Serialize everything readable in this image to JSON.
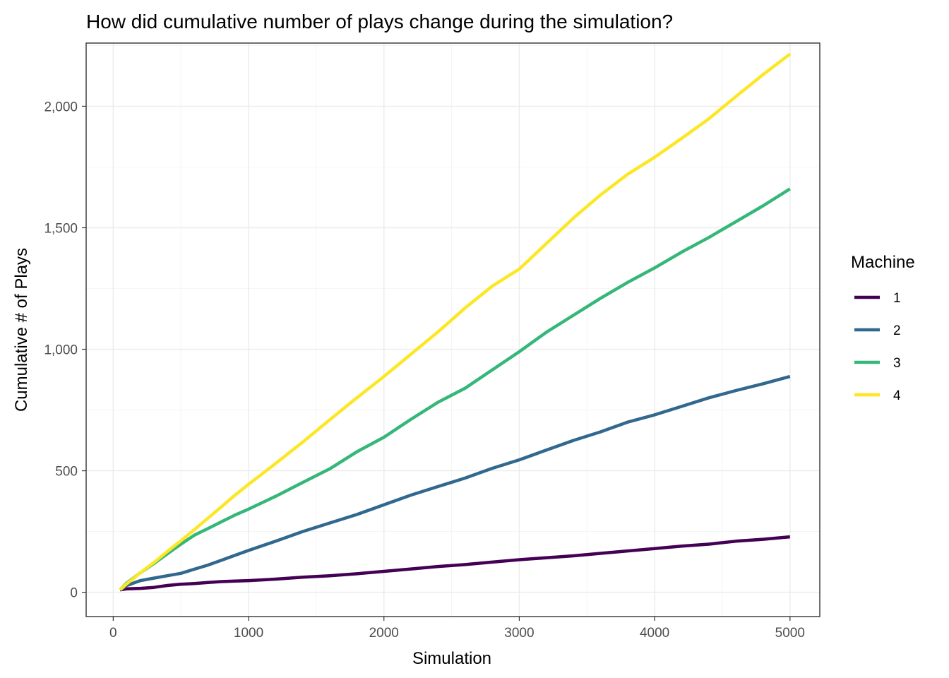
{
  "chart_data": {
    "type": "line",
    "title": "How did cumulative number of plays change during the simulation?",
    "xlabel": "Simulation",
    "ylabel": "Cumulative # of Plays",
    "xlim": [
      -200,
      5220
    ],
    "ylim": [
      -100,
      2260
    ],
    "x_ticks": [
      0,
      1000,
      2000,
      3000,
      4000,
      5000
    ],
    "x_tick_labels": [
      "0",
      "1000",
      "2000",
      "3000",
      "4000",
      "5000"
    ],
    "y_ticks": [
      0,
      500,
      1000,
      1500,
      2000
    ],
    "y_tick_labels": [
      "0",
      "500",
      "1,000",
      "1,500",
      "2,000"
    ],
    "grid": true,
    "legend": {
      "title": "Machine",
      "position": "right"
    },
    "series": [
      {
        "name": "1",
        "color": "#440154",
        "x": [
          50,
          100,
          200,
          300,
          400,
          500,
          600,
          700,
          800,
          900,
          1000,
          1200,
          1400,
          1600,
          1800,
          2000,
          2200,
          2400,
          2600,
          2800,
          3000,
          3200,
          3400,
          3600,
          3800,
          4000,
          4200,
          4400,
          4600,
          4800,
          5000
        ],
        "y": [
          10,
          14,
          16,
          20,
          28,
          33,
          36,
          40,
          44,
          46,
          48,
          54,
          62,
          68,
          76,
          86,
          96,
          106,
          114,
          124,
          134,
          142,
          150,
          160,
          170,
          180,
          190,
          198,
          210,
          218,
          228
        ]
      },
      {
        "name": "2",
        "color": "#31688e",
        "x": [
          50,
          100,
          200,
          300,
          400,
          500,
          600,
          700,
          800,
          900,
          1000,
          1200,
          1400,
          1600,
          1800,
          2000,
          2200,
          2400,
          2600,
          2800,
          3000,
          3200,
          3400,
          3600,
          3800,
          4000,
          4200,
          4400,
          4600,
          4800,
          5000
        ],
        "y": [
          10,
          28,
          48,
          58,
          68,
          78,
          95,
          112,
          132,
          152,
          172,
          210,
          250,
          285,
          320,
          360,
          400,
          435,
          470,
          510,
          545,
          585,
          625,
          660,
          700,
          730,
          765,
          800,
          830,
          858,
          888
        ]
      },
      {
        "name": "3",
        "color": "#35b779",
        "x": [
          50,
          100,
          200,
          300,
          400,
          500,
          600,
          700,
          800,
          900,
          1000,
          1200,
          1400,
          1600,
          1800,
          2000,
          2200,
          2400,
          2600,
          2800,
          3000,
          3200,
          3400,
          3600,
          3800,
          4000,
          4200,
          4400,
          4600,
          4800,
          5000
        ],
        "y": [
          10,
          38,
          80,
          118,
          158,
          198,
          235,
          262,
          290,
          318,
          342,
          395,
          452,
          508,
          578,
          638,
          712,
          782,
          840,
          915,
          990,
          1070,
          1140,
          1210,
          1275,
          1335,
          1400,
          1460,
          1525,
          1590,
          1660
        ]
      },
      {
        "name": "4",
        "color": "#fde725",
        "x": [
          50,
          100,
          200,
          300,
          400,
          500,
          600,
          700,
          800,
          900,
          1000,
          1200,
          1400,
          1600,
          1800,
          2000,
          2200,
          2400,
          2600,
          2800,
          3000,
          3200,
          3400,
          3600,
          3800,
          4000,
          4200,
          4400,
          4600,
          4800,
          5000
        ],
        "y": [
          10,
          35,
          80,
          122,
          168,
          212,
          258,
          305,
          352,
          400,
          444,
          530,
          618,
          710,
          800,
          888,
          980,
          1072,
          1170,
          1260,
          1330,
          1435,
          1540,
          1635,
          1720,
          1790,
          1868,
          1948,
          2040,
          2130,
          2215
        ]
      }
    ]
  }
}
